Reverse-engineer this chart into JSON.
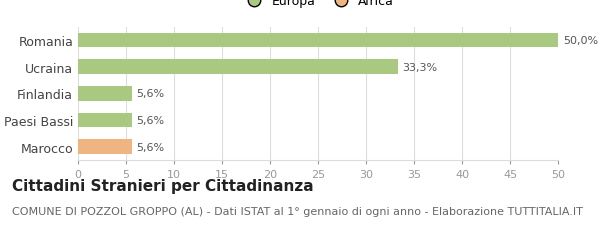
{
  "categories": [
    "Romania",
    "Ucraina",
    "Finlandia",
    "Paesi Bassi",
    "Marocco"
  ],
  "values": [
    50.0,
    33.3,
    5.6,
    5.6,
    5.6
  ],
  "labels": [
    "50,0%",
    "33,3%",
    "5,6%",
    "5,6%",
    "5,6%"
  ],
  "colors": [
    "#a8c97f",
    "#a8c97f",
    "#a8c97f",
    "#a8c97f",
    "#f0b482"
  ],
  "legend_items": [
    {
      "label": "Europa",
      "color": "#a8c97f"
    },
    {
      "label": "Africa",
      "color": "#f0b482"
    }
  ],
  "xlim": [
    0,
    50
  ],
  "xticks": [
    0,
    5,
    10,
    15,
    20,
    25,
    30,
    35,
    40,
    45,
    50
  ],
  "title": "Cittadini Stranieri per Cittadinanza",
  "subtitle": "COMUNE DI POZZOL GROPPO (AL) - Dati ISTAT al 1° gennaio di ogni anno - Elaborazione TUTTITALIA.IT",
  "background_color": "#ffffff",
  "bar_edge_color": "none",
  "grid_color": "#dddddd",
  "title_fontsize": 11,
  "subtitle_fontsize": 8,
  "label_fontsize": 8,
  "tick_fontsize": 8,
  "ytick_fontsize": 9
}
